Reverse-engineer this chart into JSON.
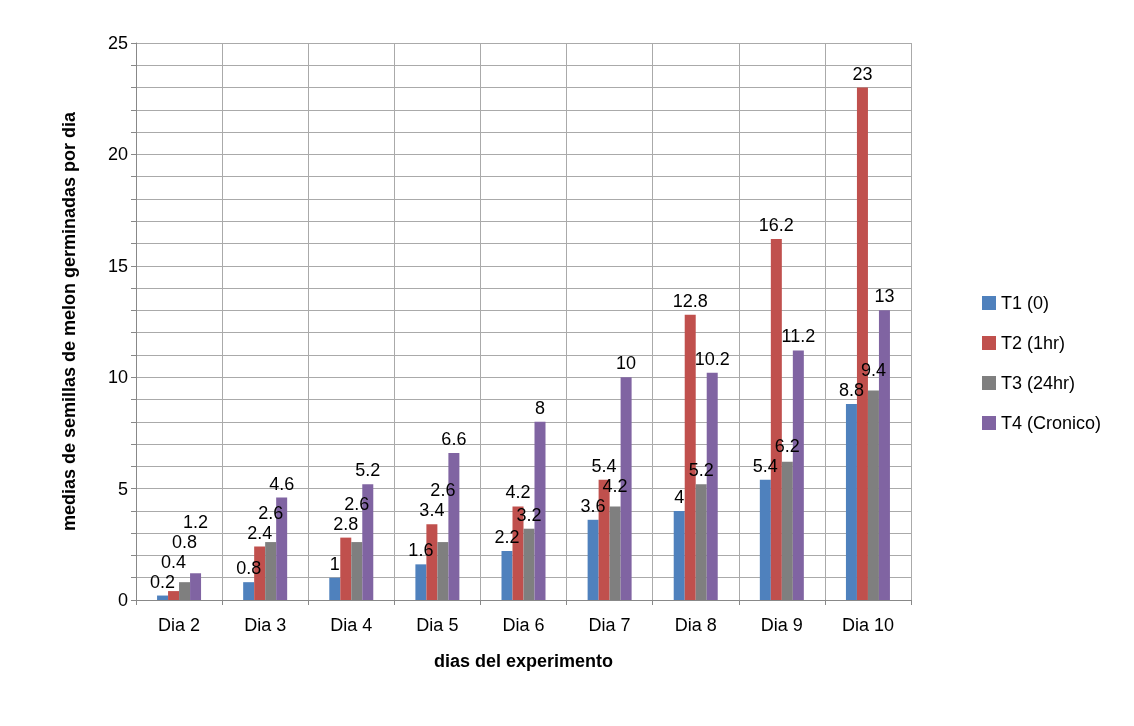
{
  "chart_data": {
    "type": "bar",
    "xlabel": "dias del experimento",
    "ylabel": "medias de semillas de melon germinadas por dia",
    "categories": [
      "Dia 2",
      "Dia 3",
      "Dia 4",
      "Dia 5",
      "Dia 6",
      "Dia 7",
      "Dia 8",
      "Dia 9",
      "Dia 10"
    ],
    "series": [
      {
        "name": "T1 (0)",
        "color": "#4f81bd",
        "values": [
          0.2,
          0.8,
          1,
          1.6,
          2.2,
          3.6,
          4,
          5.4,
          8.8
        ]
      },
      {
        "name": "T2 (1hr)",
        "color": "#c0504d",
        "values": [
          0.4,
          2.4,
          2.8,
          3.4,
          4.2,
          5.4,
          12.8,
          16.2,
          23
        ]
      },
      {
        "name": "T3 (24hr)",
        "color": "#7f7f7f",
        "values": [
          0.8,
          2.6,
          2.6,
          2.6,
          3.2,
          4.2,
          5.2,
          6.2,
          9.4
        ]
      },
      {
        "name": "T4 (Cronico)",
        "color": "#8064a2",
        "values": [
          1.2,
          4.6,
          5.2,
          6.6,
          8,
          10,
          10.2,
          11.2,
          13
        ]
      }
    ],
    "ylim": [
      0,
      25
    ],
    "yticks": [
      0,
      {
        "value": 1,
        "label": null
      },
      {
        "value": 2,
        "label": null
      },
      {
        "value": 3,
        "label": null
      },
      {
        "value": 4,
        "label": null
      },
      5,
      {
        "value": 6,
        "label": null
      },
      {
        "value": 7,
        "label": null
      },
      {
        "value": 8,
        "label": null
      },
      {
        "value": 9,
        "label": null
      },
      10,
      {
        "value": 11,
        "label": null
      },
      {
        "value": 12,
        "label": null
      },
      {
        "value": 13,
        "label": null
      },
      {
        "value": 14,
        "label": null
      },
      15,
      {
        "value": 16,
        "label": null
      },
      {
        "value": 17,
        "label": null
      },
      {
        "value": 18,
        "label": null
      },
      {
        "value": 19,
        "label": null
      },
      20,
      {
        "value": 21,
        "label": null
      },
      {
        "value": 22,
        "label": null
      },
      {
        "value": 23,
        "label": null
      },
      {
        "value": 24,
        "label": null
      },
      25
    ],
    "grid": true,
    "legend": "right",
    "data_labels": true
  }
}
